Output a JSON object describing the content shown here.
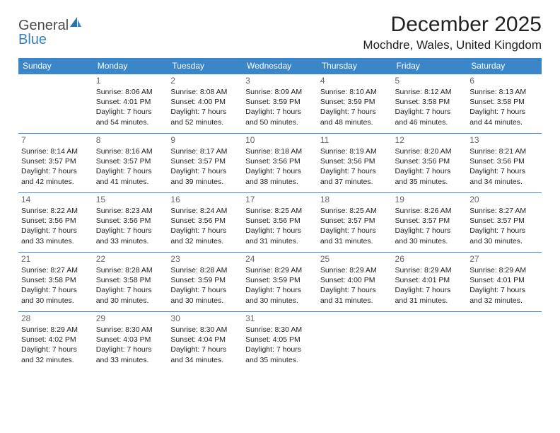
{
  "brand": {
    "name_a": "General",
    "name_b": "Blue"
  },
  "title": "December 2025",
  "location": "Mochdre, Wales, United Kingdom",
  "colors": {
    "header_bg": "#3a86c8",
    "header_text": "#ffffff",
    "rule": "#3a86c8",
    "logo_blue": "#3a7fc4",
    "text": "#222222",
    "daynum": "#666666",
    "background": "#ffffff"
  },
  "typography": {
    "title_fontsize": 30,
    "location_fontsize": 17,
    "dow_fontsize": 12,
    "daynum_fontsize": 12,
    "info_fontsize": 10.5
  },
  "dow": [
    "Sunday",
    "Monday",
    "Tuesday",
    "Wednesday",
    "Thursday",
    "Friday",
    "Saturday"
  ],
  "weeks": [
    [
      null,
      {
        "d": "1",
        "sr": "Sunrise: 8:06 AM",
        "ss": "Sunset: 4:01 PM",
        "dl1": "Daylight: 7 hours",
        "dl2": "and 54 minutes."
      },
      {
        "d": "2",
        "sr": "Sunrise: 8:08 AM",
        "ss": "Sunset: 4:00 PM",
        "dl1": "Daylight: 7 hours",
        "dl2": "and 52 minutes."
      },
      {
        "d": "3",
        "sr": "Sunrise: 8:09 AM",
        "ss": "Sunset: 3:59 PM",
        "dl1": "Daylight: 7 hours",
        "dl2": "and 50 minutes."
      },
      {
        "d": "4",
        "sr": "Sunrise: 8:10 AM",
        "ss": "Sunset: 3:59 PM",
        "dl1": "Daylight: 7 hours",
        "dl2": "and 48 minutes."
      },
      {
        "d": "5",
        "sr": "Sunrise: 8:12 AM",
        "ss": "Sunset: 3:58 PM",
        "dl1": "Daylight: 7 hours",
        "dl2": "and 46 minutes."
      },
      {
        "d": "6",
        "sr": "Sunrise: 8:13 AM",
        "ss": "Sunset: 3:58 PM",
        "dl1": "Daylight: 7 hours",
        "dl2": "and 44 minutes."
      }
    ],
    [
      {
        "d": "7",
        "sr": "Sunrise: 8:14 AM",
        "ss": "Sunset: 3:57 PM",
        "dl1": "Daylight: 7 hours",
        "dl2": "and 42 minutes."
      },
      {
        "d": "8",
        "sr": "Sunrise: 8:16 AM",
        "ss": "Sunset: 3:57 PM",
        "dl1": "Daylight: 7 hours",
        "dl2": "and 41 minutes."
      },
      {
        "d": "9",
        "sr": "Sunrise: 8:17 AM",
        "ss": "Sunset: 3:57 PM",
        "dl1": "Daylight: 7 hours",
        "dl2": "and 39 minutes."
      },
      {
        "d": "10",
        "sr": "Sunrise: 8:18 AM",
        "ss": "Sunset: 3:56 PM",
        "dl1": "Daylight: 7 hours",
        "dl2": "and 38 minutes."
      },
      {
        "d": "11",
        "sr": "Sunrise: 8:19 AM",
        "ss": "Sunset: 3:56 PM",
        "dl1": "Daylight: 7 hours",
        "dl2": "and 37 minutes."
      },
      {
        "d": "12",
        "sr": "Sunrise: 8:20 AM",
        "ss": "Sunset: 3:56 PM",
        "dl1": "Daylight: 7 hours",
        "dl2": "and 35 minutes."
      },
      {
        "d": "13",
        "sr": "Sunrise: 8:21 AM",
        "ss": "Sunset: 3:56 PM",
        "dl1": "Daylight: 7 hours",
        "dl2": "and 34 minutes."
      }
    ],
    [
      {
        "d": "14",
        "sr": "Sunrise: 8:22 AM",
        "ss": "Sunset: 3:56 PM",
        "dl1": "Daylight: 7 hours",
        "dl2": "and 33 minutes."
      },
      {
        "d": "15",
        "sr": "Sunrise: 8:23 AM",
        "ss": "Sunset: 3:56 PM",
        "dl1": "Daylight: 7 hours",
        "dl2": "and 33 minutes."
      },
      {
        "d": "16",
        "sr": "Sunrise: 8:24 AM",
        "ss": "Sunset: 3:56 PM",
        "dl1": "Daylight: 7 hours",
        "dl2": "and 32 minutes."
      },
      {
        "d": "17",
        "sr": "Sunrise: 8:25 AM",
        "ss": "Sunset: 3:56 PM",
        "dl1": "Daylight: 7 hours",
        "dl2": "and 31 minutes."
      },
      {
        "d": "18",
        "sr": "Sunrise: 8:25 AM",
        "ss": "Sunset: 3:57 PM",
        "dl1": "Daylight: 7 hours",
        "dl2": "and 31 minutes."
      },
      {
        "d": "19",
        "sr": "Sunrise: 8:26 AM",
        "ss": "Sunset: 3:57 PM",
        "dl1": "Daylight: 7 hours",
        "dl2": "and 30 minutes."
      },
      {
        "d": "20",
        "sr": "Sunrise: 8:27 AM",
        "ss": "Sunset: 3:57 PM",
        "dl1": "Daylight: 7 hours",
        "dl2": "and 30 minutes."
      }
    ],
    [
      {
        "d": "21",
        "sr": "Sunrise: 8:27 AM",
        "ss": "Sunset: 3:58 PM",
        "dl1": "Daylight: 7 hours",
        "dl2": "and 30 minutes."
      },
      {
        "d": "22",
        "sr": "Sunrise: 8:28 AM",
        "ss": "Sunset: 3:58 PM",
        "dl1": "Daylight: 7 hours",
        "dl2": "and 30 minutes."
      },
      {
        "d": "23",
        "sr": "Sunrise: 8:28 AM",
        "ss": "Sunset: 3:59 PM",
        "dl1": "Daylight: 7 hours",
        "dl2": "and 30 minutes."
      },
      {
        "d": "24",
        "sr": "Sunrise: 8:29 AM",
        "ss": "Sunset: 3:59 PM",
        "dl1": "Daylight: 7 hours",
        "dl2": "and 30 minutes."
      },
      {
        "d": "25",
        "sr": "Sunrise: 8:29 AM",
        "ss": "Sunset: 4:00 PM",
        "dl1": "Daylight: 7 hours",
        "dl2": "and 31 minutes."
      },
      {
        "d": "26",
        "sr": "Sunrise: 8:29 AM",
        "ss": "Sunset: 4:01 PM",
        "dl1": "Daylight: 7 hours",
        "dl2": "and 31 minutes."
      },
      {
        "d": "27",
        "sr": "Sunrise: 8:29 AM",
        "ss": "Sunset: 4:01 PM",
        "dl1": "Daylight: 7 hours",
        "dl2": "and 32 minutes."
      }
    ],
    [
      {
        "d": "28",
        "sr": "Sunrise: 8:29 AM",
        "ss": "Sunset: 4:02 PM",
        "dl1": "Daylight: 7 hours",
        "dl2": "and 32 minutes."
      },
      {
        "d": "29",
        "sr": "Sunrise: 8:30 AM",
        "ss": "Sunset: 4:03 PM",
        "dl1": "Daylight: 7 hours",
        "dl2": "and 33 minutes."
      },
      {
        "d": "30",
        "sr": "Sunrise: 8:30 AM",
        "ss": "Sunset: 4:04 PM",
        "dl1": "Daylight: 7 hours",
        "dl2": "and 34 minutes."
      },
      {
        "d": "31",
        "sr": "Sunrise: 8:30 AM",
        "ss": "Sunset: 4:05 PM",
        "dl1": "Daylight: 7 hours",
        "dl2": "and 35 minutes."
      },
      null,
      null,
      null
    ]
  ]
}
